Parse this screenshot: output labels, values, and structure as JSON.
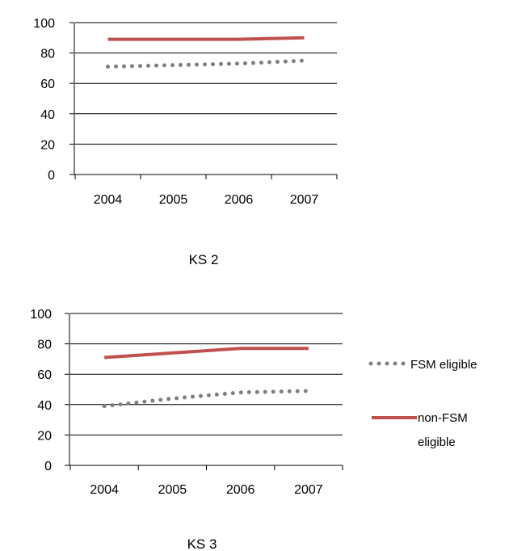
{
  "colors": {
    "fsm": "#808080",
    "non_fsm": "#C0504D",
    "axis": "#000000"
  },
  "chart_data": [
    {
      "type": "line",
      "caption": "KS 2",
      "categories": [
        "2004",
        "2005",
        "2006",
        "2007"
      ],
      "ylim": [
        0,
        100
      ],
      "yticks": [
        "0",
        "20",
        "40",
        "60",
        "80",
        "100"
      ],
      "series": [
        {
          "name": "FSM eligible",
          "values": [
            71,
            72,
            73,
            75
          ],
          "style": "dotted"
        },
        {
          "name": "non-FSM eligible",
          "values": [
            89,
            89,
            89,
            90
          ],
          "style": "solid"
        }
      ],
      "legend": "none"
    },
    {
      "type": "line",
      "caption": "KS 3",
      "categories": [
        "2004",
        "2005",
        "2006",
        "2007"
      ],
      "ylim": [
        0,
        100
      ],
      "yticks": [
        "0",
        "20",
        "40",
        "60",
        "80",
        "100"
      ],
      "series": [
        {
          "name": "FSM eligible",
          "values": [
            39,
            44,
            48,
            49
          ],
          "style": "dotted"
        },
        {
          "name": "non-FSM eligible",
          "values": [
            71,
            74,
            77,
            77
          ],
          "style": "solid"
        }
      ],
      "legend": "right",
      "legend_labels": [
        "FSM eligible",
        "non-FSM",
        "eligible"
      ]
    }
  ]
}
